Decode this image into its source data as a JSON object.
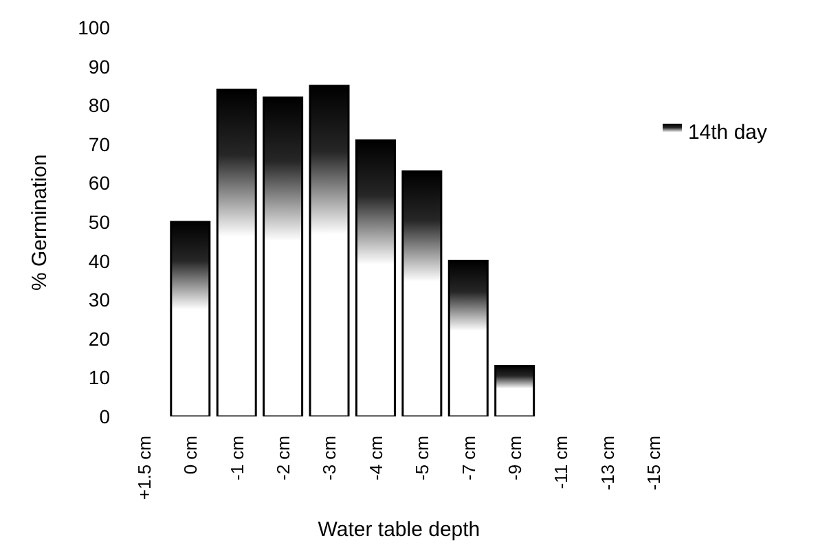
{
  "chart_data": {
    "type": "bar",
    "xlabel": "Water table depth",
    "ylabel": "% Germination",
    "categories": [
      "+1.5 cm",
      "0 cm",
      "-1 cm",
      "-2 cm",
      "-3 cm",
      "-4 cm",
      "-5 cm",
      "-7 cm",
      "-9 cm",
      "-11 cm",
      "-13 cm",
      "-15 cm"
    ],
    "series": [
      {
        "name": "14th day",
        "color": "#000000",
        "values": [
          0,
          50,
          84,
          82,
          85,
          71,
          63,
          40,
          13,
          0,
          0,
          0
        ]
      }
    ],
    "ylim": [
      0,
      100
    ],
    "yticks": [
      0,
      10,
      20,
      30,
      40,
      50,
      60,
      70,
      80,
      90,
      100
    ],
    "grid": false,
    "legend": "right"
  }
}
